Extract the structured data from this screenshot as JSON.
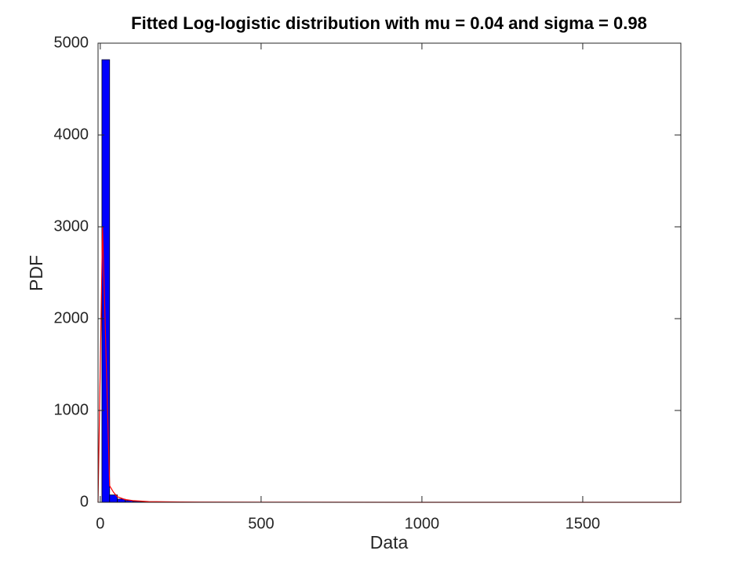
{
  "chart_data": {
    "type": "histogram",
    "title": "Fitted Log-logistic distribution with mu = 0.04 and sigma = 0.98",
    "x_label": "Data",
    "y_label": "PDF",
    "bins": [
      5,
      29,
      53,
      77,
      101,
      125,
      149,
      173,
      197,
      221
    ],
    "counts": [
      4820,
      80,
      35,
      18,
      10,
      6,
      4,
      3,
      2
    ],
    "color": "#0000ff",
    "line": {
      "x": [
        -7,
        7,
        29,
        41,
        53,
        77,
        101,
        150,
        250,
        500,
        1000,
        1805
      ],
      "y": [
        0,
        3000,
        180,
        110,
        60,
        30,
        18,
        8,
        3,
        1,
        0,
        0
      ],
      "color": "#ff0000"
    },
    "xlim": [
      -7,
      1805
    ],
    "ylim": [
      0,
      5000
    ],
    "xticks": [
      0,
      500,
      1000,
      1500
    ],
    "yticks": [
      0,
      1000,
      2000,
      3000,
      4000,
      5000
    ]
  }
}
